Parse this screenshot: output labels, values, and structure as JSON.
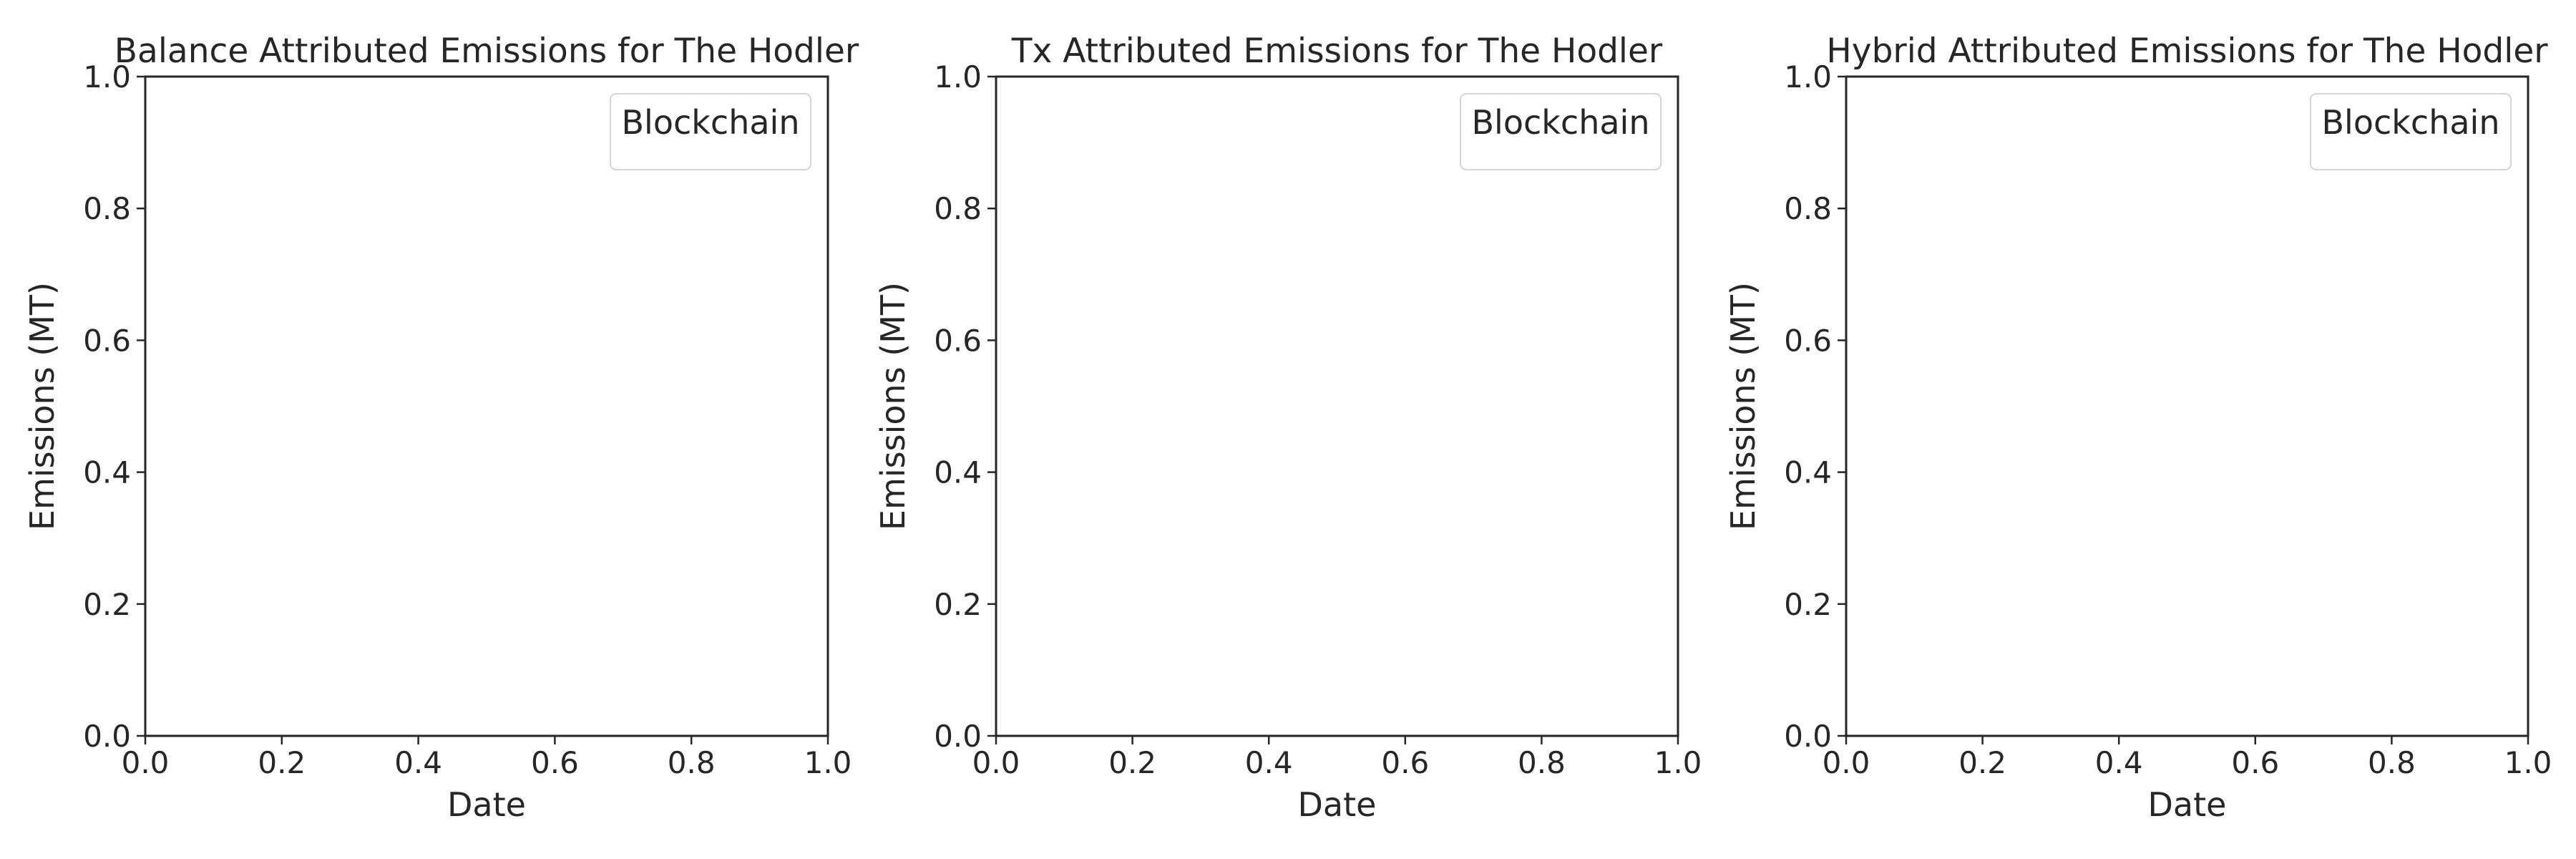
{
  "chart_data": [
    {
      "type": "line",
      "title": "Balance Attributed Emissions for The Hodler",
      "xlabel": "Date",
      "ylabel": "Emissions (MT)",
      "xlim": [
        0.0,
        1.0
      ],
      "ylim": [
        0.0,
        1.0
      ],
      "xticks": [
        "0.0",
        "0.2",
        "0.4",
        "0.6",
        "0.8",
        "1.0"
      ],
      "yticks": [
        "0.0",
        "0.2",
        "0.4",
        "0.6",
        "0.8",
        "1.0"
      ],
      "legend": {
        "title": "Blockchain",
        "placement": "upper-right",
        "entries": []
      },
      "grid": false,
      "series": []
    },
    {
      "type": "line",
      "title": "Tx Attributed Emissions for The Hodler",
      "xlabel": "Date",
      "ylabel": "Emissions (MT)",
      "xlim": [
        0.0,
        1.0
      ],
      "ylim": [
        0.0,
        1.0
      ],
      "xticks": [
        "0.0",
        "0.2",
        "0.4",
        "0.6",
        "0.8",
        "1.0"
      ],
      "yticks": [
        "0.0",
        "0.2",
        "0.4",
        "0.6",
        "0.8",
        "1.0"
      ],
      "legend": {
        "title": "Blockchain",
        "placement": "upper-right",
        "entries": []
      },
      "grid": false,
      "series": []
    },
    {
      "type": "line",
      "title": "Hybrid Attributed Emissions for The Hodler",
      "xlabel": "Date",
      "ylabel": "Emissions (MT)",
      "xlim": [
        0.0,
        1.0
      ],
      "ylim": [
        0.0,
        1.0
      ],
      "xticks": [
        "0.0",
        "0.2",
        "0.4",
        "0.6",
        "0.8",
        "1.0"
      ],
      "yticks": [
        "0.0",
        "0.2",
        "0.4",
        "0.6",
        "0.8",
        "1.0"
      ],
      "legend": {
        "title": "Blockchain",
        "placement": "upper-right",
        "entries": []
      },
      "grid": false,
      "series": []
    }
  ]
}
